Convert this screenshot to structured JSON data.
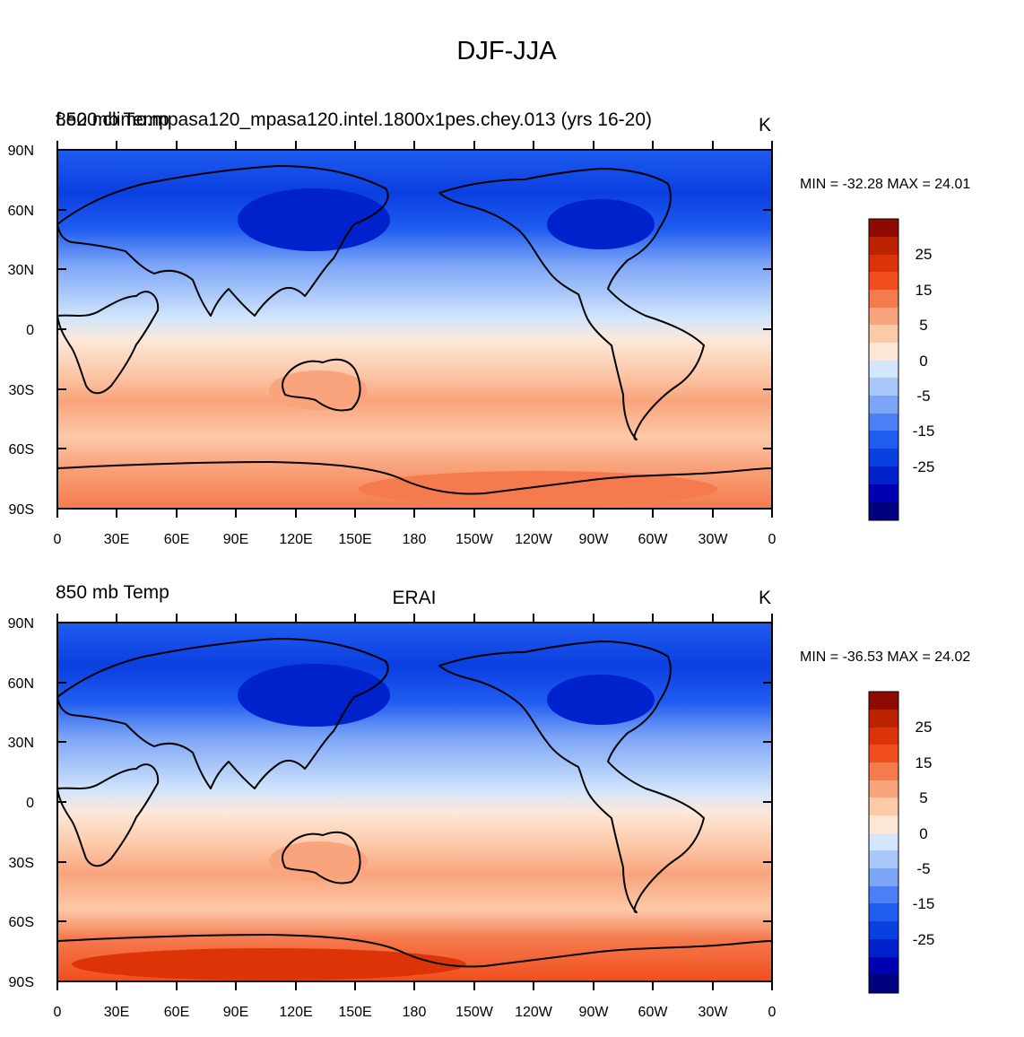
{
  "page_title": "DJF-JJA",
  "colorbar": {
    "colors": [
      "#00007f",
      "#0000b2",
      "#0022cc",
      "#0a3fe0",
      "#1f5cf0",
      "#4a7ff5",
      "#7ca5f7",
      "#a9c7f9",
      "#d3e6fb",
      "#fde8d8",
      "#fcc9a9",
      "#f9a47c",
      "#f57a4d",
      "#f04e1f",
      "#dd3308",
      "#bb2200",
      "#8c0a00"
    ],
    "labels": [
      "-25",
      "-15",
      "-5",
      "0",
      "5",
      "15",
      "25"
    ]
  },
  "axes": {
    "lat_labels": [
      "90N",
      "60N",
      "30N",
      "0",
      "30S",
      "60S",
      "90S"
    ],
    "lon_labels": [
      "0",
      "30E",
      "60E",
      "90E",
      "120E",
      "150E",
      "180",
      "150W",
      "120W",
      "90W",
      "60W",
      "30W",
      "0"
    ]
  },
  "chart_data": [
    {
      "type": "heatmap",
      "variable_label": "850 mb Temp",
      "center_title": "",
      "overlay_title": "f.e20.climo.mpasa120_mpasa120.intel.1800x1pes.chey.013 (yrs 16-20)",
      "units": "K",
      "min": -32.28,
      "max": 24.01,
      "minmax_text": "MIN = -32.28 MAX =  24.01",
      "xlim": [
        0,
        360
      ],
      "ylim": [
        -90,
        90
      ]
    },
    {
      "type": "heatmap",
      "variable_label": "850 mb Temp",
      "center_title": "ERAI",
      "overlay_title": "",
      "units": "K",
      "min": -36.53,
      "max": 24.02,
      "minmax_text": "MIN = -36.53 MAX =  24.02",
      "xlim": [
        0,
        360
      ],
      "ylim": [
        -90,
        90
      ]
    }
  ]
}
